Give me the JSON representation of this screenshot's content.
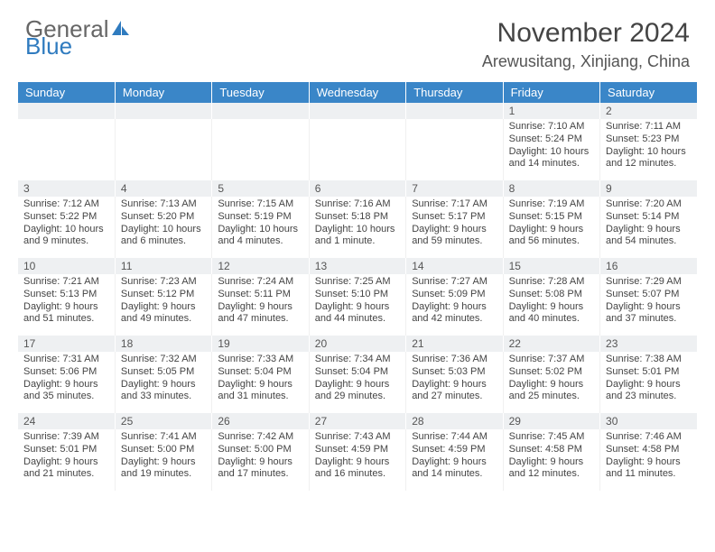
{
  "logo": {
    "text_general": "General",
    "text_blue": "Blue"
  },
  "title": "November 2024",
  "location": "Arewusitang, Xinjiang, China",
  "colors": {
    "header_bg": "#3a86c8",
    "header_text": "#ffffff",
    "daynum_bg": "#eef0f2",
    "body_text": "#444444",
    "logo_blue": "#2f7bbf",
    "logo_gray": "#666666"
  },
  "weekdays": [
    "Sunday",
    "Monday",
    "Tuesday",
    "Wednesday",
    "Thursday",
    "Friday",
    "Saturday"
  ],
  "weeks": [
    {
      "days": [
        {
          "num": "",
          "lines": [
            "",
            "",
            "",
            ""
          ]
        },
        {
          "num": "",
          "lines": [
            "",
            "",
            "",
            ""
          ]
        },
        {
          "num": "",
          "lines": [
            "",
            "",
            "",
            ""
          ]
        },
        {
          "num": "",
          "lines": [
            "",
            "",
            "",
            ""
          ]
        },
        {
          "num": "",
          "lines": [
            "",
            "",
            "",
            ""
          ]
        },
        {
          "num": "1",
          "lines": [
            "Sunrise: 7:10 AM",
            "Sunset: 5:24 PM",
            "Daylight: 10 hours",
            "and 14 minutes."
          ]
        },
        {
          "num": "2",
          "lines": [
            "Sunrise: 7:11 AM",
            "Sunset: 5:23 PM",
            "Daylight: 10 hours",
            "and 12 minutes."
          ]
        }
      ]
    },
    {
      "days": [
        {
          "num": "3",
          "lines": [
            "Sunrise: 7:12 AM",
            "Sunset: 5:22 PM",
            "Daylight: 10 hours",
            "and 9 minutes."
          ]
        },
        {
          "num": "4",
          "lines": [
            "Sunrise: 7:13 AM",
            "Sunset: 5:20 PM",
            "Daylight: 10 hours",
            "and 6 minutes."
          ]
        },
        {
          "num": "5",
          "lines": [
            "Sunrise: 7:15 AM",
            "Sunset: 5:19 PM",
            "Daylight: 10 hours",
            "and 4 minutes."
          ]
        },
        {
          "num": "6",
          "lines": [
            "Sunrise: 7:16 AM",
            "Sunset: 5:18 PM",
            "Daylight: 10 hours",
            "and 1 minute."
          ]
        },
        {
          "num": "7",
          "lines": [
            "Sunrise: 7:17 AM",
            "Sunset: 5:17 PM",
            "Daylight: 9 hours",
            "and 59 minutes."
          ]
        },
        {
          "num": "8",
          "lines": [
            "Sunrise: 7:19 AM",
            "Sunset: 5:15 PM",
            "Daylight: 9 hours",
            "and 56 minutes."
          ]
        },
        {
          "num": "9",
          "lines": [
            "Sunrise: 7:20 AM",
            "Sunset: 5:14 PM",
            "Daylight: 9 hours",
            "and 54 minutes."
          ]
        }
      ]
    },
    {
      "days": [
        {
          "num": "10",
          "lines": [
            "Sunrise: 7:21 AM",
            "Sunset: 5:13 PM",
            "Daylight: 9 hours",
            "and 51 minutes."
          ]
        },
        {
          "num": "11",
          "lines": [
            "Sunrise: 7:23 AM",
            "Sunset: 5:12 PM",
            "Daylight: 9 hours",
            "and 49 minutes."
          ]
        },
        {
          "num": "12",
          "lines": [
            "Sunrise: 7:24 AM",
            "Sunset: 5:11 PM",
            "Daylight: 9 hours",
            "and 47 minutes."
          ]
        },
        {
          "num": "13",
          "lines": [
            "Sunrise: 7:25 AM",
            "Sunset: 5:10 PM",
            "Daylight: 9 hours",
            "and 44 minutes."
          ]
        },
        {
          "num": "14",
          "lines": [
            "Sunrise: 7:27 AM",
            "Sunset: 5:09 PM",
            "Daylight: 9 hours",
            "and 42 minutes."
          ]
        },
        {
          "num": "15",
          "lines": [
            "Sunrise: 7:28 AM",
            "Sunset: 5:08 PM",
            "Daylight: 9 hours",
            "and 40 minutes."
          ]
        },
        {
          "num": "16",
          "lines": [
            "Sunrise: 7:29 AM",
            "Sunset: 5:07 PM",
            "Daylight: 9 hours",
            "and 37 minutes."
          ]
        }
      ]
    },
    {
      "days": [
        {
          "num": "17",
          "lines": [
            "Sunrise: 7:31 AM",
            "Sunset: 5:06 PM",
            "Daylight: 9 hours",
            "and 35 minutes."
          ]
        },
        {
          "num": "18",
          "lines": [
            "Sunrise: 7:32 AM",
            "Sunset: 5:05 PM",
            "Daylight: 9 hours",
            "and 33 minutes."
          ]
        },
        {
          "num": "19",
          "lines": [
            "Sunrise: 7:33 AM",
            "Sunset: 5:04 PM",
            "Daylight: 9 hours",
            "and 31 minutes."
          ]
        },
        {
          "num": "20",
          "lines": [
            "Sunrise: 7:34 AM",
            "Sunset: 5:04 PM",
            "Daylight: 9 hours",
            "and 29 minutes."
          ]
        },
        {
          "num": "21",
          "lines": [
            "Sunrise: 7:36 AM",
            "Sunset: 5:03 PM",
            "Daylight: 9 hours",
            "and 27 minutes."
          ]
        },
        {
          "num": "22",
          "lines": [
            "Sunrise: 7:37 AM",
            "Sunset: 5:02 PM",
            "Daylight: 9 hours",
            "and 25 minutes."
          ]
        },
        {
          "num": "23",
          "lines": [
            "Sunrise: 7:38 AM",
            "Sunset: 5:01 PM",
            "Daylight: 9 hours",
            "and 23 minutes."
          ]
        }
      ]
    },
    {
      "days": [
        {
          "num": "24",
          "lines": [
            "Sunrise: 7:39 AM",
            "Sunset: 5:01 PM",
            "Daylight: 9 hours",
            "and 21 minutes."
          ]
        },
        {
          "num": "25",
          "lines": [
            "Sunrise: 7:41 AM",
            "Sunset: 5:00 PM",
            "Daylight: 9 hours",
            "and 19 minutes."
          ]
        },
        {
          "num": "26",
          "lines": [
            "Sunrise: 7:42 AM",
            "Sunset: 5:00 PM",
            "Daylight: 9 hours",
            "and 17 minutes."
          ]
        },
        {
          "num": "27",
          "lines": [
            "Sunrise: 7:43 AM",
            "Sunset: 4:59 PM",
            "Daylight: 9 hours",
            "and 16 minutes."
          ]
        },
        {
          "num": "28",
          "lines": [
            "Sunrise: 7:44 AM",
            "Sunset: 4:59 PM",
            "Daylight: 9 hours",
            "and 14 minutes."
          ]
        },
        {
          "num": "29",
          "lines": [
            "Sunrise: 7:45 AM",
            "Sunset: 4:58 PM",
            "Daylight: 9 hours",
            "and 12 minutes."
          ]
        },
        {
          "num": "30",
          "lines": [
            "Sunrise: 7:46 AM",
            "Sunset: 4:58 PM",
            "Daylight: 9 hours",
            "and 11 minutes."
          ]
        }
      ]
    }
  ]
}
